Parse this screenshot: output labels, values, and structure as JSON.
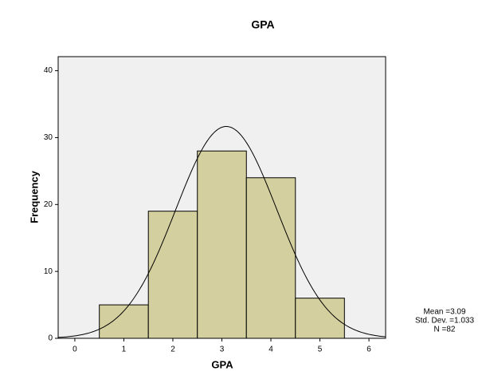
{
  "chart_data": {
    "type": "histogram",
    "title": "GPA",
    "x_label": "GPA",
    "y_label": "Frequency",
    "bins": [
      0.5,
      1.5,
      2.5,
      3.5,
      4.5,
      5.5
    ],
    "values": [
      5,
      19,
      28,
      24,
      6
    ],
    "color": "#d4cf9e",
    "xlim": [
      -0.34,
      6.34
    ],
    "xticks": [
      0,
      1,
      2,
      3,
      4,
      5,
      6
    ],
    "ylim": [
      0,
      42.1
    ],
    "yticks": [
      0,
      10,
      20,
      30,
      40
    ],
    "grid": false,
    "normal_curve": true,
    "stats": [
      {
        "value": 3.09,
        "label": "Mean =3.09"
      },
      {
        "value": 1.033,
        "label": "Std. Dev. =1.033"
      },
      {
        "value": 82,
        "label": "N =82"
      }
    ]
  }
}
